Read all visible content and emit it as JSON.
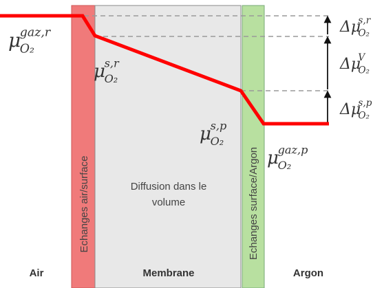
{
  "potentials": [
    {
      "base": "μ",
      "sub": "O₂",
      "sup": "gaz,r"
    },
    {
      "base": "μ",
      "sub": "O₂",
      "sup": "s,r"
    },
    {
      "base": "μ",
      "sub": "O₂",
      "sup": "s,p"
    },
    {
      "base": "μ",
      "sub": "O₂",
      "sup": "gaz,p"
    }
  ],
  "differences": [
    {
      "base": "Δμ",
      "sub": "O₂",
      "sup": "s,r"
    },
    {
      "base": "Δμ",
      "sub": "O₂",
      "sup": "V"
    },
    {
      "base": "Δμ",
      "sub": "O₂",
      "sup": "s,p"
    }
  ],
  "zones": {
    "air_surface": "Echanges air/surface",
    "diffusion": [
      "Diffusion dans le",
      "volume"
    ],
    "surface_argon": "Echanges surface/Argon"
  },
  "regions": [
    "Air",
    "Membrane",
    "Argon"
  ]
}
